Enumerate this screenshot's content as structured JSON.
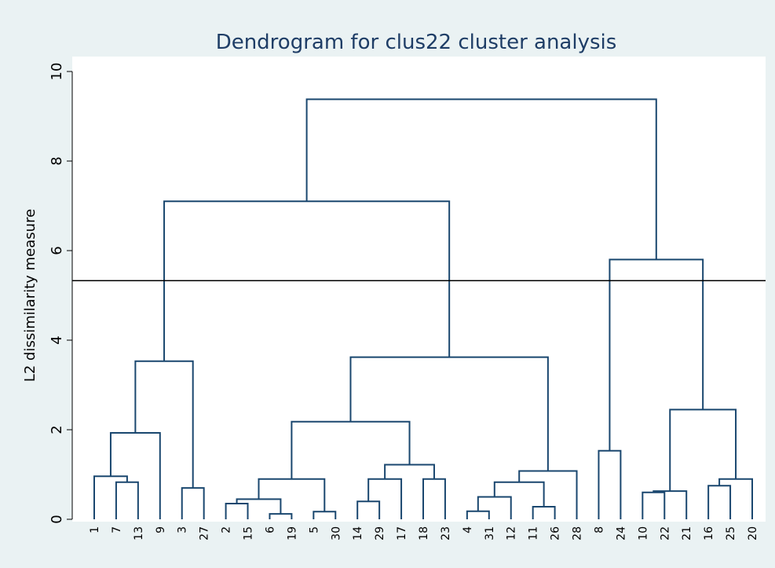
{
  "chart_data": {
    "type": "dendrogram",
    "title": "Dendrogram for clus22 cluster analysis",
    "y_label": "L2 dissimilarity measure",
    "leaves": [
      "1",
      "7",
      "13",
      "9",
      "3",
      "27",
      "2",
      "15",
      "6",
      "19",
      "5",
      "30",
      "14",
      "29",
      "17",
      "18",
      "23",
      "4",
      "31",
      "12",
      "11",
      "26",
      "28",
      "8",
      "24",
      "10",
      "22",
      "21",
      "16",
      "25",
      "20"
    ],
    "merges": [
      {
        "left": 1,
        "right": 2,
        "height": 0.83
      },
      {
        "left": 0,
        "right": 31,
        "height": 0.96
      },
      {
        "left": 32,
        "right": 3,
        "height": 1.93
      },
      {
        "left": 4,
        "right": 5,
        "height": 0.7
      },
      {
        "left": 33,
        "right": 34,
        "height": 3.53
      },
      {
        "left": 6,
        "right": 7,
        "height": 0.35
      },
      {
        "left": 8,
        "right": 9,
        "height": 0.12
      },
      {
        "left": 36,
        "right": 37,
        "height": 0.45
      },
      {
        "left": 10,
        "right": 11,
        "height": 0.17
      },
      {
        "left": 38,
        "right": 39,
        "height": 0.9
      },
      {
        "left": 12,
        "right": 13,
        "height": 0.4
      },
      {
        "left": 41,
        "right": 14,
        "height": 0.9
      },
      {
        "left": 15,
        "right": 16,
        "height": 0.9
      },
      {
        "left": 42,
        "right": 43,
        "height": 1.22
      },
      {
        "left": 40,
        "right": 44,
        "height": 2.18
      },
      {
        "left": 17,
        "right": 18,
        "height": 0.18
      },
      {
        "left": 46,
        "right": 19,
        "height": 0.5
      },
      {
        "left": 20,
        "right": 21,
        "height": 0.28
      },
      {
        "left": 47,
        "right": 48,
        "height": 0.83
      },
      {
        "left": 49,
        "right": 22,
        "height": 1.08
      },
      {
        "left": 45,
        "right": 50,
        "height": 3.62
      },
      {
        "left": 35,
        "right": 51,
        "height": 7.1
      },
      {
        "left": 23,
        "right": 24,
        "height": 1.53
      },
      {
        "left": 25,
        "right": 26,
        "height": 0.6
      },
      {
        "left": 54,
        "right": 27,
        "height": 0.63
      },
      {
        "left": 28,
        "right": 29,
        "height": 0.75
      },
      {
        "left": 56,
        "right": 30,
        "height": 0.9
      },
      {
        "left": 55,
        "right": 57,
        "height": 2.45
      },
      {
        "left": 53,
        "right": 58,
        "height": 5.8
      },
      {
        "left": 52,
        "right": 59,
        "height": 9.38
      }
    ],
    "cut_line": 5.33,
    "ylim": [
      0,
      10
    ],
    "yticks": [
      0,
      2,
      4,
      6,
      8,
      10
    ],
    "color": "#1a476f",
    "cut_color": "#000000"
  }
}
